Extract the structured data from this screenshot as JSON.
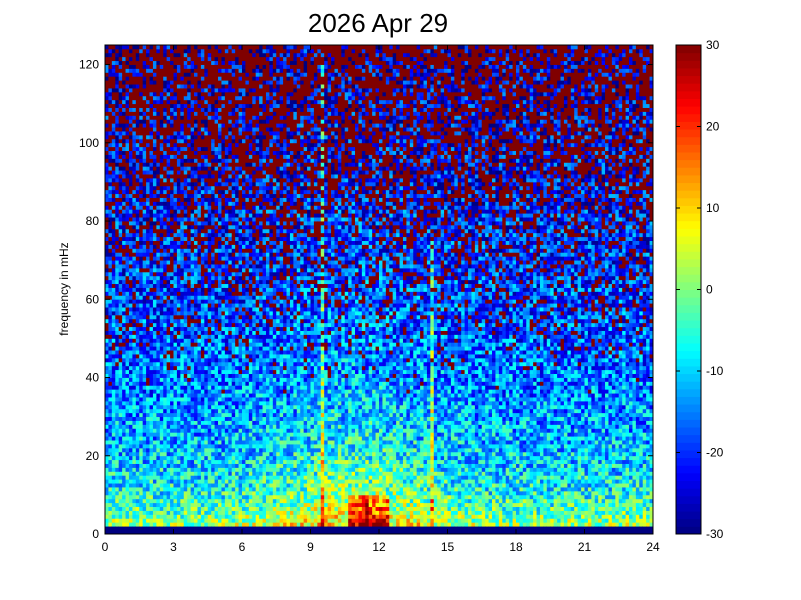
{
  "chart_data": {
    "type": "heatmap",
    "title": "2026 Apr 29",
    "xlabel": "",
    "ylabel": "frequency in mHz",
    "xlim": [
      0,
      24
    ],
    "ylim": [
      0,
      125
    ],
    "x_ticks": [
      0,
      3,
      6,
      9,
      12,
      15,
      18,
      21,
      24
    ],
    "y_ticks": [
      0,
      20,
      40,
      60,
      80,
      100,
      120
    ],
    "colorbar": {
      "colormap": "jet",
      "range": [
        -30,
        30
      ],
      "ticks": [
        30,
        20,
        10,
        0,
        -10,
        -20,
        -30
      ]
    },
    "grid": false,
    "features": [
      {
        "x_hours": 9.5,
        "freq_max_mHz": 122,
        "level": "high"
      },
      {
        "x_hours": 14.3,
        "freq_max_mHz": 75,
        "level": "high"
      },
      {
        "x_hours": 11.5,
        "freq_max_mHz": 10,
        "level": "very high"
      }
    ]
  },
  "colors": {
    "background": "#ffffff",
    "axis": "#000000"
  }
}
